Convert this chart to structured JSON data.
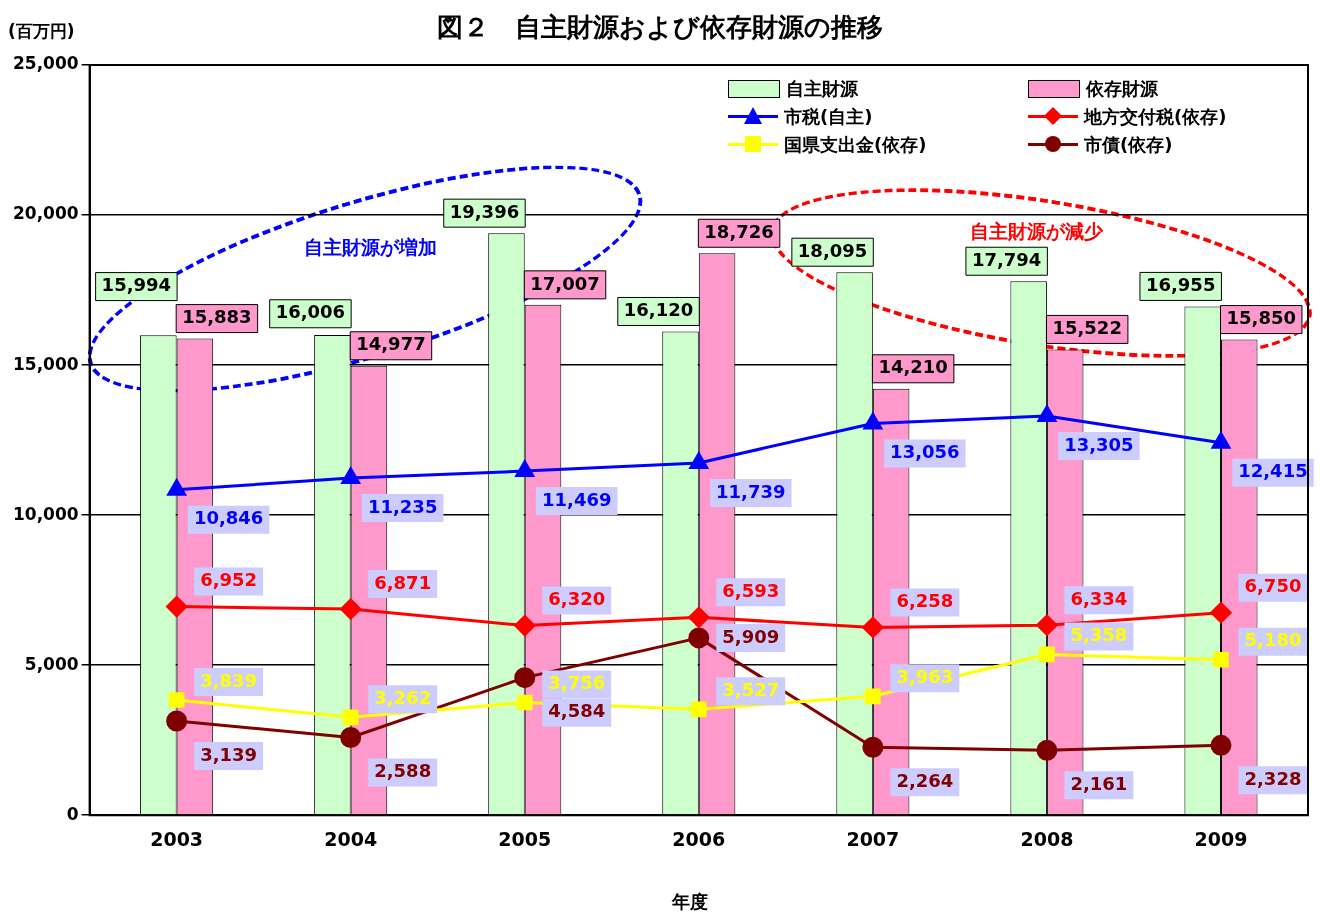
{
  "chart_data": {
    "type": "bar",
    "title": "図２　自主財源および依存財源の推移",
    "ylabel": "(百万円)",
    "xlabel": "年度",
    "categories": [
      "2003",
      "2004",
      "2005",
      "2006",
      "2007",
      "2008",
      "2009"
    ],
    "series": [
      {
        "name": "自主財源",
        "type": "bar",
        "color": "#ccffcc",
        "values": [
          15994,
          16006,
          19396,
          16120,
          18095,
          17794,
          16955
        ],
        "value_labels": [
          "15,994",
          "16,006",
          "19,396",
          "16,120",
          "18,095",
          "17,794",
          "16,955"
        ]
      },
      {
        "name": "依存財源",
        "type": "bar",
        "color": "#ff99cc",
        "values": [
          15883,
          14977,
          17007,
          18726,
          14210,
          15522,
          15850
        ],
        "value_labels": [
          "15,883",
          "14,977",
          "17,007",
          "18,726",
          "14,210",
          "15,522",
          "15,850"
        ]
      },
      {
        "name": "市税(自主)",
        "type": "line",
        "marker": "triangle",
        "color": "#0000ff",
        "values": [
          10846,
          11235,
          11469,
          11739,
          13056,
          13305,
          12415
        ],
        "value_labels": [
          "10,846",
          "11,235",
          "11,469",
          "11,739",
          "13,056",
          "13,305",
          "12,415"
        ]
      },
      {
        "name": "地方交付税(依存)",
        "type": "line",
        "marker": "diamond",
        "color": "#ff0000",
        "values": [
          6952,
          6871,
          6320,
          6593,
          6258,
          6334,
          6750
        ],
        "value_labels": [
          "6,952",
          "6,871",
          "6,320",
          "6,593",
          "6,258",
          "6,334",
          "6,750"
        ]
      },
      {
        "name": "国県支出金(依存)",
        "type": "line",
        "marker": "square",
        "color": "#ffff00",
        "values": [
          3839,
          3262,
          3756,
          3527,
          3963,
          5358,
          5180
        ],
        "value_labels": [
          "3,839",
          "3,262",
          "3,756",
          "3,527",
          "3,963",
          "5,358",
          "5,180"
        ]
      },
      {
        "name": "市債(依存)",
        "type": "line",
        "marker": "circle",
        "color": "#800000",
        "values": [
          3139,
          2588,
          4584,
          5909,
          2264,
          2161,
          2328
        ],
        "value_labels": [
          "3,139",
          "2,588",
          "4,584",
          "5,909",
          "2,264",
          "2,161",
          "2,328"
        ]
      }
    ],
    "ylim": [
      0,
      25000
    ],
    "yticks": [
      0,
      {
        "value": 5000,
        "label": "5,000"
      },
      {
        "value": 10000,
        "label": "10,000"
      },
      {
        "value": 15000,
        "label": "15,000"
      },
      {
        "value": 20000,
        "label": "20,000"
      },
      {
        "value": 25000,
        "label": "25,000"
      }
    ],
    "grid": "y",
    "legend": "top right",
    "annotations": [
      "自主財源が増加",
      "自主財源が減少"
    ]
  }
}
